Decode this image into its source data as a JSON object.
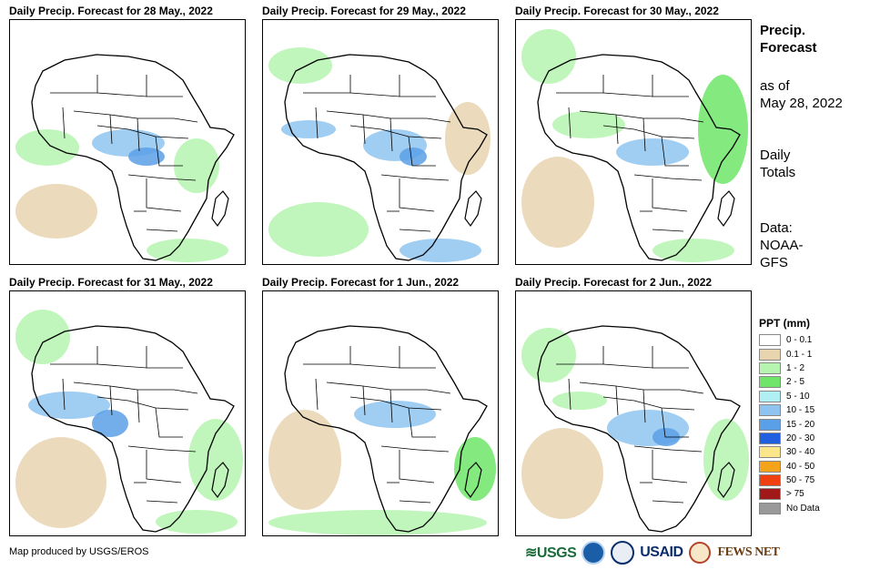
{
  "panels": [
    {
      "title": "Daily Precip. Forecast for 28 May., 2022"
    },
    {
      "title": "Daily Precip. Forecast for 29 May., 2022"
    },
    {
      "title": "Daily Precip. Forecast for 30 May., 2022"
    },
    {
      "title": "Daily Precip. Forecast for 31 May., 2022"
    },
    {
      "title": "Daily Precip. Forecast for 1 Jun., 2022"
    },
    {
      "title": "Daily Precip. Forecast for 2 Jun., 2022"
    }
  ],
  "side": {
    "title_line1": "Precip.",
    "title_line2": "Forecast",
    "asof_line1": "as of",
    "asof_line2": "May 28, 2022",
    "totals_line1": "Daily",
    "totals_line2": "Totals",
    "data_line1": "Data:",
    "data_line2": "NOAA-",
    "data_line3": "GFS"
  },
  "legend": {
    "title": "PPT (mm)",
    "items": [
      {
        "label": "0 - 0.1",
        "color": "#ffffff"
      },
      {
        "label": "0.1 - 1",
        "color": "#e8d5b0"
      },
      {
        "label": "1 - 2",
        "color": "#b5f5b0"
      },
      {
        "label": "2 - 5",
        "color": "#6fe66a"
      },
      {
        "label": "5 - 10",
        "color": "#b0f0f5"
      },
      {
        "label": "10 - 15",
        "color": "#8fc4f0"
      },
      {
        "label": "15 - 20",
        "color": "#5aa0e8"
      },
      {
        "label": "20 - 30",
        "color": "#1f5fe0"
      },
      {
        "label": "30 - 40",
        "color": "#fbe58a"
      },
      {
        "label": "40 - 50",
        "color": "#f5a31a"
      },
      {
        "label": "50 - 75",
        "color": "#f0400f"
      },
      {
        "label": "> 75",
        "color": "#a01818"
      },
      {
        "label": "No Data",
        "color": "#999999"
      }
    ]
  },
  "footer": {
    "credit": "Map produced by USGS/EROS",
    "logo_usgs": "≋USGS",
    "logo_usaid": "USAID",
    "logo_fews": "FEWS NET"
  }
}
